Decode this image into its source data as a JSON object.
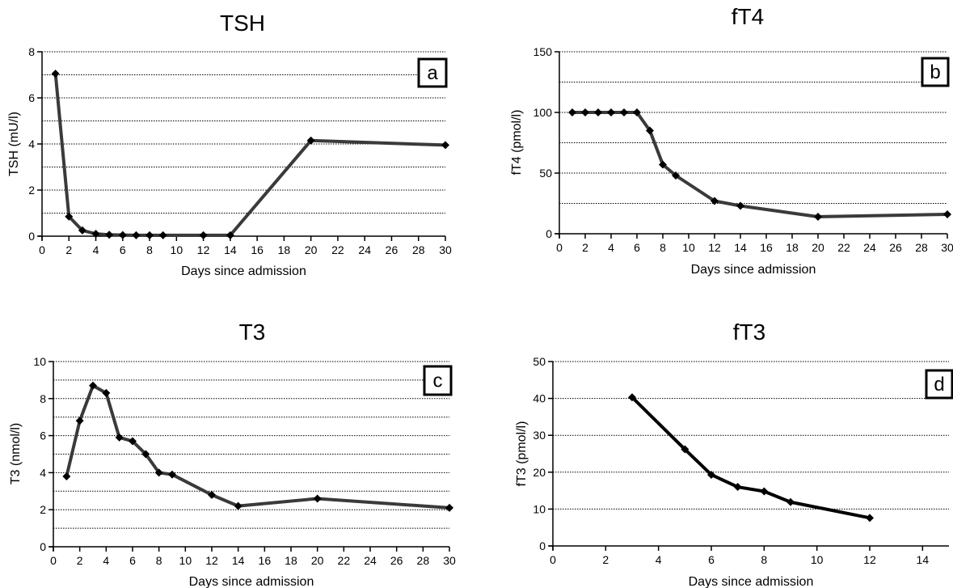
{
  "chart_data": [
    {
      "type": "line",
      "panel": "a",
      "title": "TSH",
      "xlabel": "Days since admission",
      "ylabel": "TSH (mU/l)",
      "xlim": [
        0,
        30
      ],
      "ylim": [
        0,
        8
      ],
      "x_ticks": [
        0,
        2,
        4,
        6,
        8,
        10,
        12,
        14,
        16,
        18,
        20,
        22,
        24,
        26,
        28,
        30
      ],
      "y_ticks": [
        0,
        2,
        4,
        6,
        8
      ],
      "y_grid": [
        1,
        2,
        3,
        4,
        5,
        6,
        7
      ],
      "x": [
        1,
        2,
        3,
        4,
        5,
        6,
        7,
        8,
        9,
        12,
        14,
        20,
        30
      ],
      "y": [
        7.05,
        0.85,
        0.25,
        0.1,
        0.06,
        0.05,
        0.04,
        0.04,
        0.04,
        0.04,
        0.04,
        4.15,
        3.95
      ],
      "series_color": "#3a3a3a"
    },
    {
      "type": "line",
      "panel": "b",
      "title": "fT4",
      "xlabel": "Days since admission",
      "ylabel": "fT4 (pmol/l)",
      "xlim": [
        0,
        30
      ],
      "ylim": [
        0,
        150
      ],
      "x_ticks": [
        0,
        2,
        4,
        6,
        8,
        10,
        12,
        14,
        16,
        18,
        20,
        22,
        24,
        26,
        28,
        30
      ],
      "y_ticks": [
        0,
        50,
        100,
        150
      ],
      "y_grid": [
        25,
        50,
        75,
        100,
        125
      ],
      "x": [
        1,
        2,
        3,
        4,
        5,
        6,
        7,
        8,
        9,
        12,
        14,
        20,
        30
      ],
      "y": [
        100,
        100,
        100,
        100,
        100,
        100,
        85,
        57,
        48,
        27,
        23,
        14,
        16
      ],
      "series_color": "#3a3a3a"
    },
    {
      "type": "line",
      "panel": "c",
      "title": "T3",
      "xlabel": "Days since admission",
      "ylabel": "T3 (nmol/l)",
      "xlim": [
        0,
        30
      ],
      "ylim": [
        0,
        10
      ],
      "x_ticks": [
        0,
        2,
        4,
        6,
        8,
        10,
        12,
        14,
        16,
        18,
        20,
        22,
        24,
        26,
        28,
        30
      ],
      "y_ticks": [
        0,
        2,
        4,
        6,
        8,
        10
      ],
      "y_grid": [
        1,
        2,
        3,
        4,
        5,
        6,
        7,
        8,
        9
      ],
      "x": [
        1,
        2,
        3,
        4,
        5,
        6,
        7,
        8,
        9,
        12,
        14,
        20,
        30
      ],
      "y": [
        3.8,
        6.8,
        8.7,
        8.3,
        5.9,
        5.7,
        5.0,
        4.0,
        3.9,
        2.8,
        2.2,
        2.6,
        2.1
      ],
      "series_color": "#3a3a3a"
    },
    {
      "type": "line",
      "panel": "d",
      "title": "fT3",
      "xlabel": "Days since admission",
      "ylabel": "fT3 (pmol/l)",
      "xlim": [
        0,
        15
      ],
      "ylim": [
        0,
        50
      ],
      "x_ticks": [
        0,
        2,
        4,
        6,
        8,
        10,
        12,
        14
      ],
      "y_ticks": [
        0,
        10,
        20,
        30,
        40,
        50
      ],
      "y_grid": [
        10,
        20,
        30,
        40
      ],
      "x": [
        3,
        5,
        6,
        7,
        8,
        9,
        12
      ],
      "y": [
        40.3,
        26.2,
        19.3,
        16.0,
        14.8,
        11.9,
        7.6
      ],
      "series_color": "#000000"
    }
  ]
}
